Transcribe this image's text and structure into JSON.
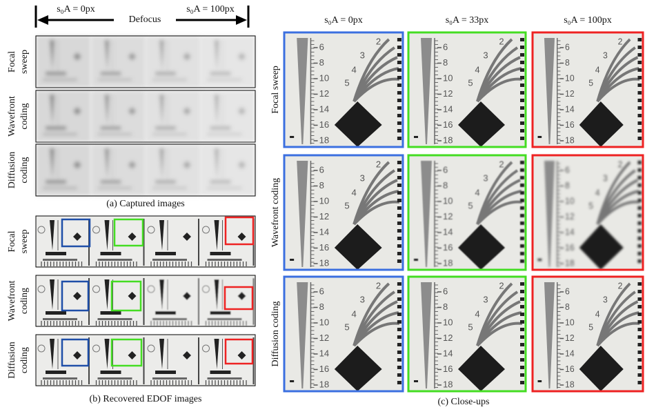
{
  "panel_a": {
    "arrow": {
      "left": "s₀A = 0px",
      "center": "Defocus",
      "right": "s₀A = 100px"
    },
    "rows": [
      [
        "Focal",
        "sweep"
      ],
      [
        "Wavefront",
        "coding"
      ],
      [
        "Diffusion",
        "coding"
      ]
    ],
    "caption": "(a) Captured images"
  },
  "panel_b": {
    "rows": [
      [
        "Focal",
        "sweep"
      ],
      [
        "Wavefront",
        "coding"
      ],
      [
        "Diffusion",
        "coding"
      ]
    ],
    "caption": "(b) Recovered EDOF images"
  },
  "panel_c": {
    "columns": [
      "s₀A = 0px",
      "s₀A = 33px",
      "s₀A = 100px"
    ],
    "rows": [
      "Focal sweep",
      "Wavefront coding",
      "Diffusion coding"
    ],
    "caption": "(c) Close-ups",
    "ruler_labels": [
      "6",
      "8",
      "10",
      "12",
      "14",
      "16",
      "18"
    ],
    "fan_labels": [
      "2",
      "3",
      "4",
      "5"
    ]
  }
}
